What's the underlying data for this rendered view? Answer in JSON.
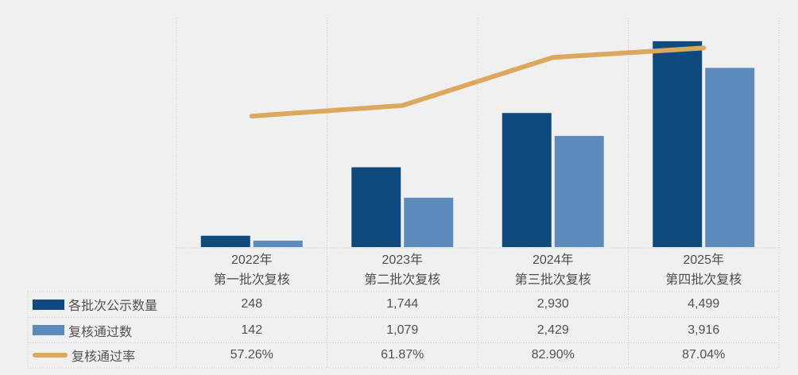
{
  "app": {
    "background_color": "#F0F0F0",
    "border_color": "#CBCBCB",
    "text_color": "#525252"
  },
  "chart_data": {
    "type": "combo",
    "categories": [
      "2022年\n第一批次复核",
      "2023年\n第二批次复核",
      "2024年\n第三批次复核",
      "2025年\n第四批次复核"
    ],
    "series": [
      {
        "name": "各批次公示数量",
        "type": "bar",
        "color": "#0D4A7E",
        "values": [
          248,
          1744,
          2930,
          4499
        ],
        "labels": [
          "248",
          "1,744",
          "2,930",
          "4,499"
        ]
      },
      {
        "name": "复核通过数",
        "type": "bar",
        "color": "#5D8CBB",
        "values": [
          142,
          1079,
          2429,
          3916
        ],
        "labels": [
          "142",
          "1,079",
          "2,429",
          "3,916"
        ]
      },
      {
        "name": "复核通过率",
        "type": "line",
        "color": "#DCA85F",
        "values": [
          57.26,
          61.87,
          82.9,
          87.04
        ],
        "labels": [
          "57.26%",
          "61.87%",
          "82.90%",
          "87.04%"
        ]
      }
    ],
    "left_axis": {
      "min": 0,
      "max": 5000,
      "labels_visible": false
    },
    "right_axis": {
      "min": 0,
      "max": 100,
      "unit": "%",
      "labels_visible": false
    },
    "grid": {
      "vertical": true,
      "horizontal": false,
      "style": "dotted"
    },
    "legend_position": "data-table-left",
    "data_table_visible": true,
    "title": ""
  }
}
